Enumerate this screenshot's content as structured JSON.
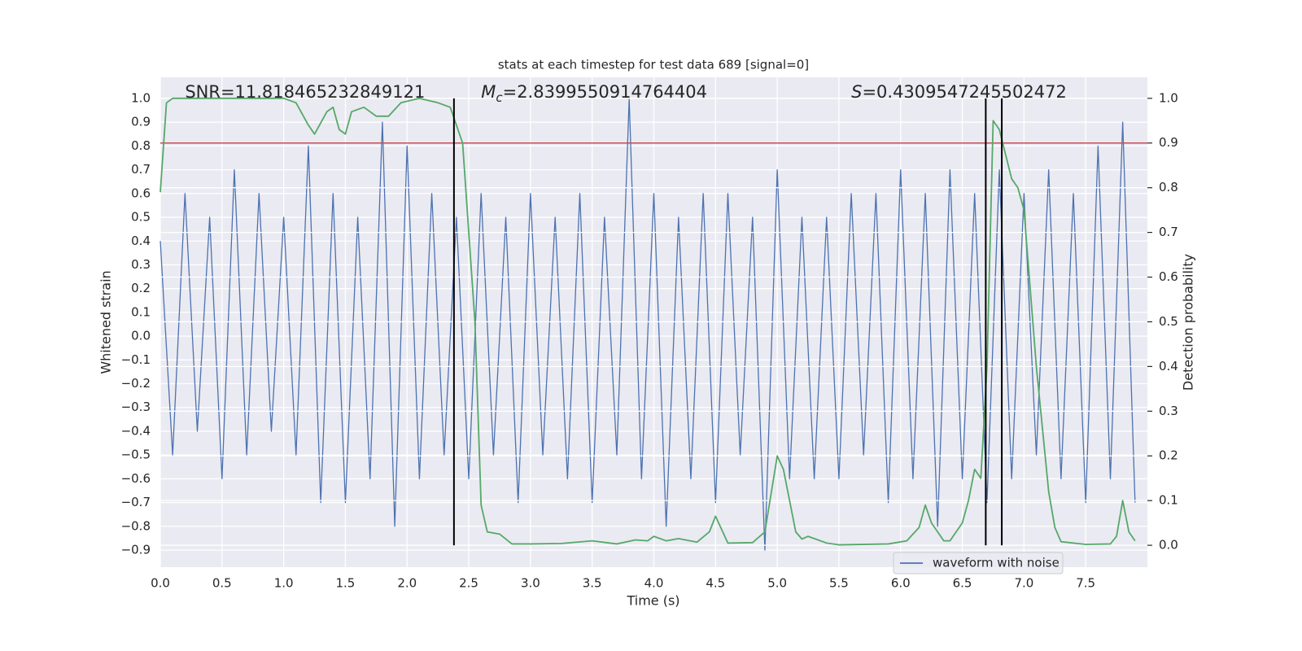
{
  "chart_data": {
    "type": "line",
    "title": "stats at each timestep for test data 689 [signal=0]",
    "x_label": "Time (s)",
    "y_label": "Whitened strain",
    "y2_label": "Detection probability",
    "xlim": [
      0,
      8.0
    ],
    "ylim": [
      -0.972,
      1.089
    ],
    "y2lim": [
      -0.049,
      1.047
    ],
    "grid": true,
    "background": "#eaeaf2",
    "xticks": [
      {
        "value": 0,
        "label": "0.0"
      },
      0.5,
      {
        "value": 1,
        "label": "1.0"
      },
      1.5,
      {
        "value": 2,
        "label": "2.0"
      },
      2.5,
      {
        "value": 3,
        "label": "3.0"
      },
      3.5,
      {
        "value": 4,
        "label": "4.0"
      },
      4.5,
      {
        "value": 5,
        "label": "5.0"
      },
      5.5,
      {
        "value": 6,
        "label": "6.0"
      },
      6.5,
      {
        "value": 7,
        "label": "7.0"
      },
      7.5
    ],
    "yticks": [
      {
        "value": -0.9,
        "label": "−0.9"
      },
      {
        "value": -0.8,
        "label": "−0.8"
      },
      {
        "value": -0.7,
        "label": "−0.7"
      },
      {
        "value": -0.6,
        "label": "−0.6"
      },
      {
        "value": -0.5,
        "label": "−0.5"
      },
      {
        "value": -0.4,
        "label": "−0.4"
      },
      {
        "value": -0.3,
        "label": "−0.3"
      },
      {
        "value": -0.2,
        "label": "−0.2"
      },
      {
        "value": -0.1,
        "label": "−0.1"
      },
      {
        "value": 0,
        "label": "0.0"
      },
      0.1,
      0.2,
      0.3,
      0.4,
      0.5,
      0.6,
      0.7,
      0.8,
      0.9,
      {
        "value": 1,
        "label": "1.0"
      }
    ],
    "y2ticks": [
      {
        "value": 0,
        "label": "0.0"
      },
      0.1,
      0.2,
      0.3,
      0.4,
      0.5,
      0.6,
      0.7,
      0.8,
      0.9,
      {
        "value": 1,
        "label": "1.0"
      }
    ],
    "series": [
      {
        "name": "waveform with noise",
        "color": "#4c72b0",
        "x": [
          0.0,
          0.1,
          0.2,
          0.3,
          0.4,
          0.5,
          0.6,
          0.7,
          0.8,
          0.9,
          1.0,
          1.1,
          1.2,
          1.3,
          1.4,
          1.5,
          1.6,
          1.7,
          1.8,
          1.9,
          2.0,
          2.1,
          2.2,
          2.3,
          2.4,
          2.5,
          2.6,
          2.7,
          2.8,
          2.9,
          3.0,
          3.1,
          3.2,
          3.3,
          3.4,
          3.5,
          3.6,
          3.7,
          3.8,
          3.9,
          4.0,
          4.1,
          4.2,
          4.3,
          4.4,
          4.5,
          4.6,
          4.7,
          4.8,
          4.9,
          5.0,
          5.1,
          5.2,
          5.3,
          5.4,
          5.5,
          5.6,
          5.7,
          5.8,
          5.9,
          6.0,
          6.1,
          6.2,
          6.3,
          6.4,
          6.5,
          6.6,
          6.7,
          6.8,
          6.9,
          7.0,
          7.1,
          7.2,
          7.3,
          7.4,
          7.5,
          7.6,
          7.7,
          7.8,
          7.9
        ],
        "values": [
          0.4,
          -0.5,
          0.6,
          -0.4,
          0.5,
          -0.6,
          0.7,
          -0.5,
          0.6,
          -0.4,
          0.5,
          -0.5,
          0.8,
          -0.7,
          0.6,
          -0.7,
          0.5,
          -0.6,
          0.9,
          -0.8,
          0.8,
          -0.6,
          0.6,
          -0.5,
          0.5,
          -0.6,
          0.6,
          -0.5,
          0.5,
          -0.7,
          0.6,
          -0.5,
          0.5,
          -0.6,
          0.6,
          -0.7,
          0.5,
          -0.5,
          1.0,
          -0.6,
          0.6,
          -0.8,
          0.5,
          -0.6,
          0.6,
          -0.7,
          0.6,
          -0.5,
          0.5,
          -0.9,
          0.7,
          -0.6,
          0.5,
          -0.6,
          0.5,
          -0.6,
          0.6,
          -0.5,
          0.6,
          -0.7,
          0.7,
          -0.6,
          0.6,
          -0.8,
          0.7,
          -0.6,
          0.6,
          -0.7,
          0.7,
          -0.6,
          0.6,
          -0.5,
          0.7,
          -0.6,
          0.6,
          -0.7,
          0.8,
          -0.6,
          0.9,
          -0.7
        ]
      },
      {
        "color": "#55a868",
        "axis": "y2",
        "x": [
          0.0,
          0.05,
          0.1,
          1.0,
          1.1,
          1.2,
          1.25,
          1.35,
          1.4,
          1.45,
          1.5,
          1.55,
          1.65,
          1.75,
          1.85,
          1.95,
          2.1,
          2.25,
          2.35,
          2.45,
          2.55,
          2.6,
          2.65,
          2.75,
          2.85,
          3.0,
          3.25,
          3.5,
          3.7,
          3.85,
          3.95,
          4.0,
          4.1,
          4.2,
          4.35,
          4.45,
          4.5,
          4.6,
          4.8,
          4.9,
          5.0,
          5.05,
          5.15,
          5.2,
          5.25,
          5.4,
          5.5,
          5.9,
          6.05,
          6.15,
          6.2,
          6.25,
          6.35,
          6.4,
          6.5,
          6.55,
          6.6,
          6.65,
          6.7,
          6.75,
          6.8,
          6.9,
          6.95,
          7.0,
          7.1,
          7.2,
          7.25,
          7.3,
          7.5,
          7.7,
          7.75,
          7.8,
          7.85,
          7.9
        ],
        "values": [
          0.79,
          0.99,
          1.0,
          1.0,
          0.99,
          0.94,
          0.92,
          0.97,
          0.98,
          0.93,
          0.92,
          0.97,
          0.98,
          0.96,
          0.96,
          0.99,
          1.0,
          0.99,
          0.98,
          0.9,
          0.5,
          0.09,
          0.03,
          0.025,
          0.003,
          0.003,
          0.004,
          0.01,
          0.003,
          0.012,
          0.01,
          0.02,
          0.01,
          0.015,
          0.007,
          0.03,
          0.065,
          0.005,
          0.006,
          0.03,
          0.2,
          0.17,
          0.03,
          0.014,
          0.02,
          0.005,
          0.001,
          0.003,
          0.01,
          0.04,
          0.09,
          0.05,
          0.01,
          0.01,
          0.05,
          0.1,
          0.17,
          0.15,
          0.4,
          0.95,
          0.93,
          0.82,
          0.8,
          0.75,
          0.4,
          0.12,
          0.04,
          0.008,
          0.002,
          0.003,
          0.02,
          0.1,
          0.03,
          0.01
        ]
      }
    ],
    "hlines": [
      {
        "value": 0.9,
        "axis": "y2",
        "color": "#c44e52"
      }
    ],
    "vlines": [
      {
        "x": 2.38,
        "span": [
          0,
          1
        ],
        "color": "#000000"
      },
      {
        "x": 6.69,
        "span": [
          0,
          1
        ],
        "color": "#000000"
      },
      {
        "x": 6.82,
        "span": [
          0,
          1
        ],
        "color": "#000000"
      }
    ],
    "annotations": [
      {
        "text": "SNR=11.818465232849121"
      },
      {
        "symbol": "M",
        "sub": "c",
        "text": "=2.8399550914764404"
      },
      {
        "symbol": "S",
        "text": "=0.4309547245502472"
      }
    ]
  }
}
